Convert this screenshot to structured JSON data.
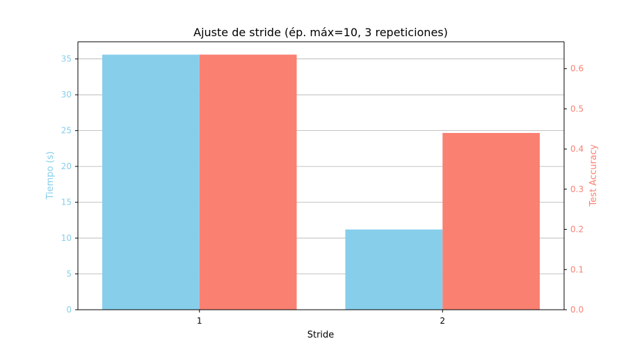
{
  "chart_data": {
    "type": "bar",
    "title": "Ajuste de stride (ép. máx=10, 3 repeticiones)",
    "xlabel": "Stride",
    "categories": [
      "1",
      "2"
    ],
    "series": [
      {
        "name": "Tiempo (s)",
        "axis": "left",
        "color": "#87CEEB",
        "values": [
          35.6,
          11.2
        ]
      },
      {
        "name": "Test Accuracy",
        "axis": "right",
        "color": "#FA8072",
        "values": [
          0.635,
          0.44
        ]
      }
    ],
    "left_axis": {
      "label": "Tiempo (s)",
      "color": "#87CEEB",
      "ylim": [
        0,
        37.4
      ],
      "ticks": [
        "0",
        "5",
        "10",
        "15",
        "20",
        "25",
        "30",
        "35"
      ]
    },
    "right_axis": {
      "label": "Test Accuracy",
      "color": "#FA8072",
      "ylim": [
        0,
        0.667
      ],
      "ticks": [
        "0.0",
        "0.1",
        "0.2",
        "0.3",
        "0.4",
        "0.5",
        "0.6"
      ]
    },
    "grid": "horizontal"
  }
}
